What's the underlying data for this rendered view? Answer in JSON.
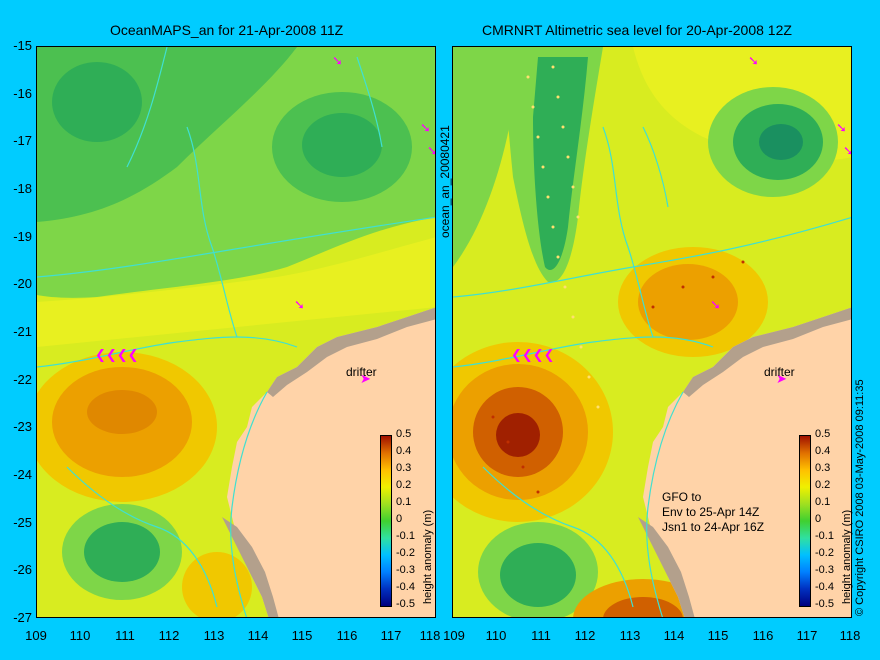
{
  "left_panel": {
    "title": "OceanMAPS_an for 21-Apr-2008 11Z",
    "side_label": "ocean_an_20080421",
    "colorbar_label": "height anomaly (m)",
    "drifter_label": "drifter"
  },
  "right_panel": {
    "title": "CMRNRT Altimetric sea level  for 20-Apr-2008 12Z",
    "colorbar_label": "height anomaly (m)",
    "drifter_label": "drifter",
    "satellite_lines": [
      "GFO to",
      "Env to 25-Apr 14Z",
      "Jsn1 to 24-Apr 16Z"
    ]
  },
  "copyright": "© Copyright CSIRO 2008   03-May-2008 09:11:35",
  "y_ticks": [
    "-15",
    "-16",
    "-17",
    "-18",
    "-19",
    "-20",
    "-21",
    "-22",
    "-23",
    "-24",
    "-25",
    "-26",
    "-27"
  ],
  "x_ticks": [
    "109",
    "110",
    "111",
    "112",
    "113",
    "114",
    "115",
    "116",
    "117",
    "118"
  ],
  "colorbar_ticks": [
    "0.5",
    "0.4",
    "0.3",
    "0.2",
    "0.1",
    "0",
    "-0.1",
    "-0.2",
    "-0.3",
    "-0.4",
    "-0.5"
  ],
  "colors": {
    "background": "#00ccff",
    "land": "#ffd3a8",
    "coast_shelf": "#b3a08c",
    "contour": "#40e0d0",
    "arrows": "#ff00ff"
  }
}
